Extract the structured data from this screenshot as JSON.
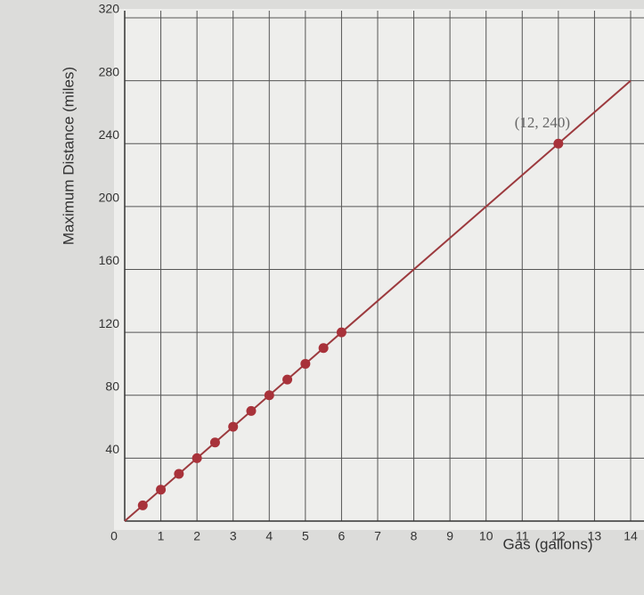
{
  "chart_data": {
    "type": "scatter",
    "xlabel": "Gas (gallons)",
    "ylabel": "Maximum Distance (miles)",
    "xlim": [
      0,
      14
    ],
    "ylim": [
      0,
      320
    ],
    "xticks": [
      0,
      1,
      2,
      3,
      4,
      5,
      6,
      7,
      8,
      9,
      10,
      11,
      12,
      13,
      14
    ],
    "yticks": [
      40,
      80,
      120,
      160,
      200,
      240,
      280,
      320
    ],
    "grid": true,
    "series": [
      {
        "style": "line",
        "color": "#9c3a3e",
        "x": [
          0,
          14
        ],
        "values": [
          0,
          280
        ]
      },
      {
        "style": "marker",
        "color": "#a8323a",
        "x": [
          0.5,
          1,
          1.5,
          2,
          2.5,
          3,
          3.5,
          4,
          4.5,
          5,
          5.5,
          6,
          12
        ],
        "values": [
          10,
          20,
          30,
          40,
          50,
          60,
          70,
          80,
          90,
          100,
          110,
          120,
          240
        ]
      }
    ],
    "annotations": [
      {
        "text": "(12, 240)",
        "x": 12,
        "y": 240
      }
    ]
  }
}
